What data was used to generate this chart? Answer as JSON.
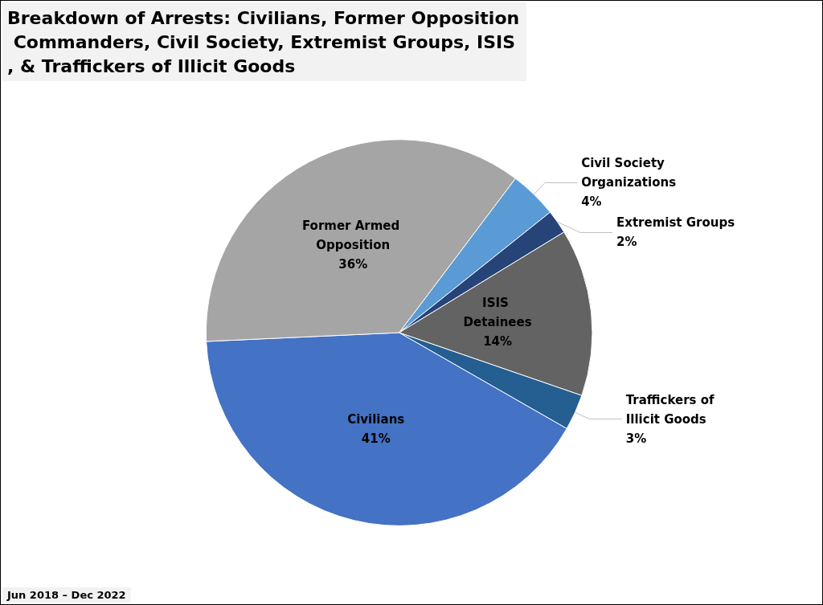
{
  "chart_data": {
    "type": "pie",
    "title": "Breakdown of Arrests: Civilians, Former Opposition Commanders, Civil Society, Extremist Groups, ISIS, & Traffickers of Illicit Goods",
    "categories": [
      "Civil Society Organizations",
      "Extremist Groups",
      "ISIS Detainees",
      "Traffickers of Illicit Goods",
      "Civilians",
      "Former Armed Opposition"
    ],
    "values": [
      4,
      2,
      14,
      3,
      41,
      36
    ],
    "value_labels": [
      "4%",
      "2%",
      "14%",
      "3%",
      "41%",
      "36%"
    ],
    "colors": [
      "#5b9bd5",
      "#264478",
      "#636363",
      "#255e91",
      "#4472c4",
      "#a5a5a5"
    ],
    "annotations": [
      "Jun 2018 – Dec 2022"
    ],
    "legend": false
  }
}
